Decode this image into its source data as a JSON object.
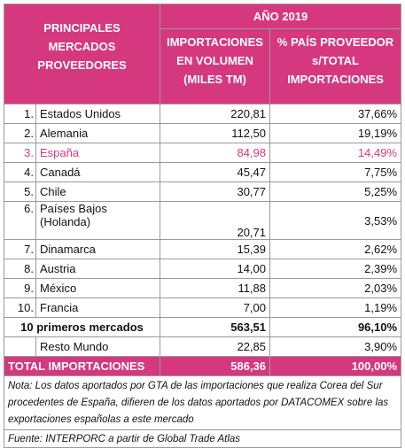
{
  "header": {
    "market_col": "PRINCIPALES MERCADOS PROVEEDORES",
    "year": "AÑO 2019",
    "volume_col": "IMPORTACIONES EN VOLUMEN (MILES TM)",
    "share_col": "% PAÍS PROVEEDOR s/TOTAL IMPORTACIONES"
  },
  "table": {
    "rows": [
      [
        "1.",
        "Estados Unidos",
        "220,81",
        "37,66%"
      ],
      [
        "2.",
        "Alemania",
        "112,50",
        "19,19%"
      ],
      [
        "3.",
        "España",
        "84,98",
        "14,49%"
      ],
      [
        "4.",
        "Canadá",
        "45,47",
        "7,75%"
      ],
      [
        "5.",
        "Chile",
        "30,77",
        "5,25%"
      ],
      [
        "6.",
        "Países Bajos (Holanda)",
        "20,71",
        "3,53%"
      ],
      [
        "7.",
        "Dinamarca",
        "15,39",
        "2,62%"
      ],
      [
        "8.",
        "Austria",
        "14,00",
        "2,39%"
      ],
      [
        "9.",
        "México",
        "11,88",
        "2,03%"
      ],
      [
        "10.",
        "Francia",
        "7,00",
        "1,19%"
      ]
    ],
    "top10": [
      "10 primeros mercados",
      "563,51",
      "96,10%"
    ],
    "rest": [
      "Resto Mundo",
      "22,85",
      "3,90%"
    ],
    "total": [
      "TOTAL IMPORTACIONES",
      "586,36",
      "100,00%"
    ]
  },
  "note": "Nota: Los datos aportados por GTA de las importaciones que realiza Corea del Sur procedentes de España, difieren de los datos aportados por DATACOMEX sobre las exportaciones españolas a este mercado",
  "source": "Fuente: INTERPORC a partir de Global Trade Atlas"
}
